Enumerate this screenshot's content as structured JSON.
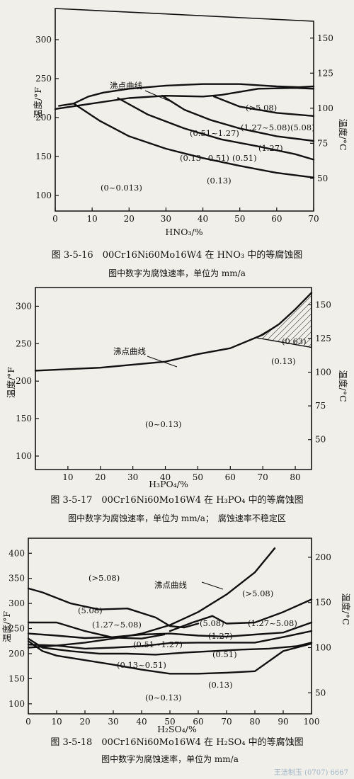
{
  "captions": {
    "fig1": "图 3-5-16　00Cr16Ni60Mo16W4 在 HNO₃ 中的等腐蚀图",
    "fig1_note": "图中数字为腐蚀速率，单位为 mm/a",
    "fig2": "图 3-5-17　00Cr16Ni60Mo16W4 在 H₃PO₄ 中的等腐蚀图",
    "fig2_note": "图中数字为腐蚀速率，单位为 mm/a；　腐蚀速率不稳定区",
    "fig3": "图 3-5-18　00Cr16Ni60Mo16W4 在 H₂SO₄ 中的等腐蚀图",
    "fig3_note": "图中数字为腐蚀速率，单位为 mm/a"
  },
  "chart_data": [
    {
      "type": "line",
      "xlabel": "HNO₃/%",
      "ylabel": "温度/°F",
      "y2label": "温度/°C",
      "xlim": [
        0,
        70
      ],
      "ylim": [
        80,
        340
      ],
      "y2lim": [
        26.7,
        171.1
      ],
      "xticks": [
        0,
        10,
        20,
        30,
        40,
        50,
        60,
        70
      ],
      "yticks": [
        100,
        150,
        200,
        250,
        300
      ],
      "y2ticks": [
        50,
        75,
        100,
        125,
        150
      ],
      "boiling_label": "沸点曲线",
      "boiling_curve": {
        "x": [
          0,
          10,
          20,
          30,
          40,
          45,
          55,
          65,
          70
        ],
        "y": [
          211,
          218,
          225,
          228,
          227,
          229,
          237,
          238,
          237
        ]
      },
      "series": [
        {
          "x": [
            5,
            12,
            20,
            30,
            40,
            50,
            60,
            70
          ],
          "y": [
            218,
            196,
            176,
            160,
            148,
            138,
            129,
            123
          ]
        },
        {
          "x": [
            17,
            25,
            35,
            45,
            55,
            65,
            70
          ],
          "y": [
            225,
            204,
            186,
            172,
            163,
            153,
            146
          ]
        },
        {
          "x": [
            29,
            35,
            42,
            50,
            60,
            70
          ],
          "y": [
            228,
            210,
            197,
            186,
            176,
            170
          ]
        },
        {
          "x": [
            43,
            50,
            60,
            70
          ],
          "y": [
            227,
            214,
            206,
            202
          ]
        },
        {
          "x": [
            1,
            5,
            9,
            13,
            20,
            30,
            40,
            50,
            60,
            66,
            70
          ],
          "y": [
            215,
            218,
            227,
            232,
            237,
            241,
            243,
            243,
            240,
            239,
            240
          ]
        }
      ],
      "region_labels": [
        "(>5.08)",
        "(1.27~5.08)",
        "(5.08)",
        "(0.51~1.27)",
        "(1.27)",
        "(0.13~0.51)",
        "(0.51)",
        "(0.13)",
        "(0~0.013)"
      ]
    },
    {
      "type": "line",
      "xlabel": "H₃PO₄/%",
      "ylabel": "温度/°F",
      "y2label": "温度/°C",
      "xlim": [
        0,
        85
      ],
      "ylim": [
        82,
        325
      ],
      "y2lim": [
        27.8,
        162.8
      ],
      "xticks": [
        10,
        20,
        30,
        40,
        50,
        60,
        70,
        80
      ],
      "yticks": [
        100,
        150,
        200,
        250,
        300
      ],
      "y2ticks": [
        50,
        75,
        100,
        125,
        150
      ],
      "boiling_label": "沸点曲线",
      "boiling_curve": {
        "x": [
          0,
          20,
          40,
          50,
          60,
          70,
          75,
          80,
          85
        ],
        "y": [
          214,
          218,
          226,
          236,
          244,
          262,
          276,
          296,
          318
        ]
      },
      "unstable_region": {
        "x": [
          68,
          75,
          80,
          85,
          85
        ],
        "y": [
          258,
          276,
          296,
          318,
          245
        ]
      },
      "region_labels": [
        "(0.63)",
        "(0.13)",
        "(0~0.13)"
      ]
    },
    {
      "type": "line",
      "xlabel": "H₂SO₄/%",
      "ylabel": "温度/°F",
      "y2label": "温度/°C",
      "xlim": [
        0,
        100
      ],
      "ylim": [
        80,
        430
      ],
      "y2lim": [
        26.7,
        221.1
      ],
      "xticks": [
        0,
        10,
        20,
        30,
        40,
        50,
        60,
        70,
        80,
        90,
        100
      ],
      "yticks": [
        100,
        150,
        200,
        250,
        300,
        350,
        400
      ],
      "y2ticks": [
        50,
        100,
        150,
        200
      ],
      "boiling_label": "沸点曲线",
      "boiling_curve": {
        "x": [
          0,
          10,
          20,
          30,
          40,
          50,
          60,
          70,
          80,
          87
        ],
        "y": [
          212,
          216,
          222,
          230,
          240,
          257,
          283,
          318,
          362,
          410
        ]
      },
      "series": [
        {
          "x": [
            0,
            5,
            15,
            25,
            35,
            45,
            50,
            55,
            60
          ],
          "y": [
            330,
            322,
            300,
            288,
            290,
            272,
            255,
            252,
            260
          ]
        },
        {
          "x": [
            50,
            58,
            65,
            70,
            80,
            90,
            100
          ],
          "y": [
            245,
            262,
            275,
            260,
            262,
            283,
            308
          ]
        },
        {
          "x": [
            0,
            10,
            20,
            30,
            40,
            48
          ],
          "y": [
            262,
            262,
            245,
            232,
            230,
            238
          ]
        },
        {
          "x": [
            0,
            10,
            20,
            30,
            40,
            50,
            60,
            70,
            80,
            90,
            100
          ],
          "y": [
            240,
            236,
            231,
            233,
            238,
            240,
            236,
            234,
            238,
            242,
            262
          ]
        },
        {
          "x": [
            0,
            10,
            20,
            30,
            40,
            50,
            60,
            70,
            80,
            90,
            100
          ],
          "y": [
            218,
            216,
            210,
            212,
            215,
            221,
            222,
            222,
            222,
            233,
            245
          ]
        },
        {
          "x": [
            0,
            5,
            15,
            25,
            35,
            45,
            55,
            65,
            75,
            85,
            95,
            100
          ],
          "y": [
            230,
            212,
            205,
            200,
            200,
            198,
            202,
            205,
            208,
            210,
            215,
            222
          ]
        },
        {
          "x": [
            0,
            5,
            10,
            20,
            30,
            40,
            50,
            60,
            70,
            80,
            90,
            100
          ],
          "y": [
            225,
            205,
            196,
            187,
            178,
            168,
            160,
            160,
            162,
            165,
            205,
            220
          ]
        }
      ],
      "region_labels": [
        "(>5.08)",
        "(>5.08)",
        "(5.08)",
        "(1.27~5.08)",
        "(5.08)",
        "(1.27)",
        "(1.27~5.08)",
        "(0.51~1.27)",
        "(0.51)",
        "(0.13~0.51)",
        "(0.13)",
        "(0~0.13)"
      ]
    }
  ],
  "watermark": "王洁制玉 (0707) 6667"
}
